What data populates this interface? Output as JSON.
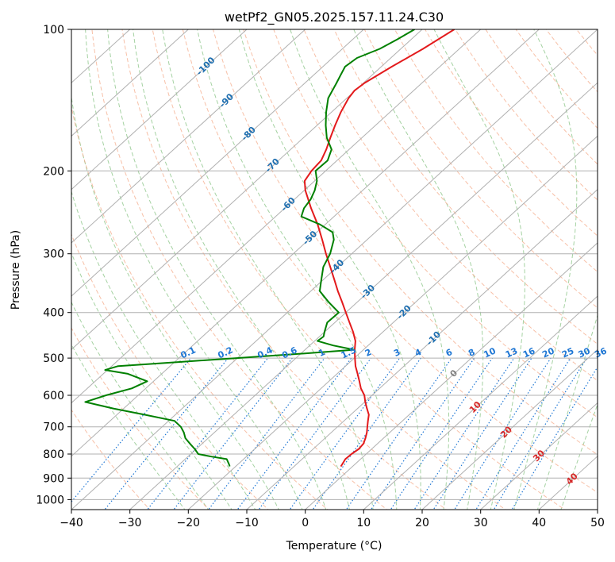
{
  "chart_data": {
    "type": "line",
    "subtype": "skew-t log-p diagram",
    "title": "wetPf2_GN05.2025.157.11.24.C30",
    "xlabel": "Temperature (°C)",
    "ylabel": "Pressure (hPa)",
    "xlim": [
      -40,
      50
    ],
    "ylim": [
      1050,
      100
    ],
    "y_scale": "log",
    "grid": true,
    "x_ticks": [
      -40,
      -30,
      -20,
      -10,
      0,
      10,
      20,
      30,
      40,
      50
    ],
    "y_ticks": [
      100,
      200,
      300,
      400,
      500,
      600,
      700,
      800,
      900,
      1000
    ],
    "series": [
      {
        "role": "temperature",
        "color": "#e31a1c",
        "pressure": [
          850,
          840,
          820,
          800,
          780,
          760,
          740,
          720,
          700,
          680,
          660,
          640,
          620,
          600,
          580,
          560,
          540,
          520,
          500,
          480,
          460,
          440,
          420,
          400,
          380,
          360,
          340,
          320,
          300,
          280,
          260,
          240,
          220,
          210,
          200,
          190,
          180,
          170,
          160,
          150,
          140,
          135,
          130,
          120,
          110,
          100
        ],
        "temperature": [
          -2.0,
          -2.2,
          -2.6,
          -2.5,
          -2.2,
          -2.4,
          -3.1,
          -3.9,
          -4.9,
          -5.9,
          -6.9,
          -8.4,
          -9.9,
          -11.3,
          -13.2,
          -14.8,
          -16.5,
          -18.3,
          -19.9,
          -21.5,
          -23.0,
          -25.1,
          -27.5,
          -30.0,
          -32.6,
          -35.4,
          -38.2,
          -41.2,
          -44.4,
          -47.7,
          -51.3,
          -55.5,
          -59.8,
          -61.7,
          -62.4,
          -62.7,
          -63.9,
          -65.4,
          -66.9,
          -68.4,
          -69.7,
          -70.1,
          -69.8,
          -68.2,
          -66.2,
          -64.5
        ]
      },
      {
        "role": "dewpoint",
        "color": "#008000",
        "pressure": [
          850,
          840,
          820,
          810,
          800,
          780,
          760,
          740,
          720,
          700,
          680,
          660,
          640,
          620,
          600,
          580,
          560,
          540,
          530,
          520,
          510,
          500,
          490,
          480,
          470,
          460,
          450,
          440,
          420,
          400,
          380,
          360,
          340,
          320,
          300,
          280,
          270,
          260,
          250,
          240,
          230,
          220,
          210,
          200,
          190,
          180,
          170,
          160,
          150,
          140,
          130,
          125,
          120,
          115,
          110,
          105,
          100
        ],
        "temperature": [
          -21.0,
          -21.6,
          -22.9,
          -26.0,
          -28.7,
          -30.3,
          -32.1,
          -33.9,
          -35.2,
          -36.8,
          -39.0,
          -45.2,
          -51.8,
          -57.8,
          -55.5,
          -52.4,
          -51.1,
          -55.8,
          -60.4,
          -58.9,
          -49.6,
          -40.1,
          -30.5,
          -21.6,
          -26.0,
          -29.5,
          -29.3,
          -30.0,
          -31.3,
          -31.2,
          -34.9,
          -38.5,
          -40.4,
          -42.4,
          -43.7,
          -45.7,
          -47.3,
          -50.9,
          -55.6,
          -56.7,
          -57.2,
          -58.2,
          -59.6,
          -61.7,
          -61.6,
          -63.0,
          -66.0,
          -68.5,
          -70.9,
          -73.2,
          -74.6,
          -75.4,
          -76.2,
          -75.8,
          -73.6,
          -72.4,
          -71.3
        ]
      }
    ],
    "isotherm_labels": [
      "-100",
      "-90",
      "-80",
      "-70",
      "-60",
      "-50",
      "-40",
      "-30",
      "-20",
      "-10",
      "0",
      "10",
      "20",
      "30",
      "40"
    ],
    "mixing_ratio_labels": [
      "0.1",
      "0.2",
      "0.4",
      "0.6",
      "1",
      "1.5",
      "2",
      "3",
      "4",
      "6",
      "8",
      "10",
      "13",
      "16",
      "20",
      "25",
      "30",
      "36"
    ],
    "colors": {
      "temperature_line": "#e31a1c",
      "dewpoint_line": "#008000",
      "dry_adiabat": "#f4a582",
      "moist_adiabat": "#7fbf7b",
      "mixing_ratio": "#1f77d4",
      "isotherm_label_cold": "#1f6fb0",
      "isotherm_label_warm": "#d62728",
      "isotherm_label_zero": "#808080",
      "grid": "#b0b0b0",
      "frame_line": "#d2b48c"
    }
  }
}
